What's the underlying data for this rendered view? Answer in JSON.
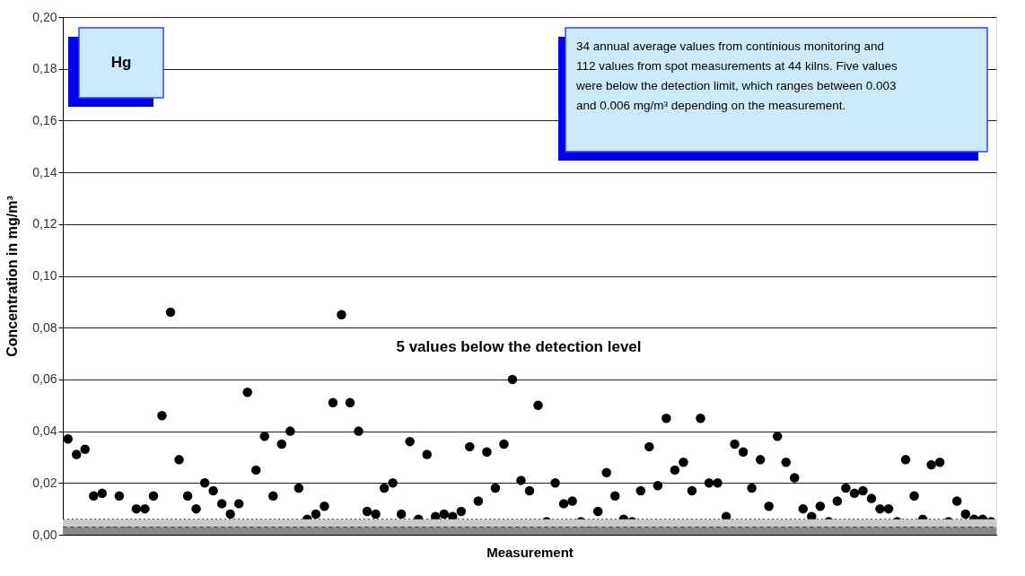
{
  "chart_data": {
    "type": "scatter",
    "ylabel": "Concentration in mg/m³",
    "xlabel": "Measurement",
    "annotations": [
      "Hg",
      "34 annual average values from continious monitoring and 112 values from spot measurements at 44 kilns. Five values were below the detection limit, which ranges between 0.003 and 0.006 mg/m³ depending on the measurement.",
      "5 values below the detection level"
    ],
    "categories": [
      null,
      null,
      null,
      null,
      null,
      null,
      null,
      null,
      null,
      null,
      null,
      null,
      null,
      null,
      null,
      null,
      null,
      null,
      null,
      null,
      null,
      null,
      null,
      null,
      null,
      null,
      null,
      null,
      null,
      null,
      null,
      null,
      null,
      null,
      null,
      null,
      null,
      null,
      null,
      null,
      null,
      null,
      null,
      null,
      null,
      null,
      null,
      null,
      null,
      null,
      null,
      null,
      null,
      null,
      null,
      null,
      null,
      null,
      null,
      null,
      null,
      null,
      null,
      null,
      null,
      null,
      null,
      null,
      null,
      null,
      null,
      null,
      null,
      null,
      null,
      null,
      null,
      null,
      null,
      null,
      null,
      null,
      null,
      null,
      null,
      null,
      null,
      null,
      null,
      null,
      null,
      null,
      null,
      null,
      null,
      null,
      null,
      null,
      null,
      null,
      null,
      null,
      null,
      null,
      null,
      null,
      null,
      null,
      null
    ],
    "series": [
      {
        "color": "#000000",
        "values": [
          0.037,
          0.031,
          0.033,
          0.015,
          0.016,
          0.004,
          0.015,
          0.004,
          0.01,
          0.01,
          0.015,
          0.046,
          0.086,
          0.029,
          0.015,
          0.01,
          0.02,
          0.017,
          0.012,
          0.008,
          0.012,
          0.055,
          0.025,
          0.038,
          0.015,
          0.035,
          0.04,
          0.018,
          0.006,
          0.008,
          0.011,
          0.051,
          0.085,
          0.051,
          0.04,
          0.009,
          0.008,
          0.018,
          0.02,
          0.008,
          0.036,
          0.006,
          0.031,
          0.007,
          0.008,
          0.007,
          0.009,
          0.034,
          0.013,
          0.032,
          0.018,
          0.035,
          0.06,
          0.021,
          0.017,
          0.05,
          0.005,
          0.02,
          0.012,
          0.013,
          0.005,
          0.003,
          0.009,
          0.024,
          0.015,
          0.006,
          0.005,
          0.017,
          0.034,
          0.019,
          0.045,
          0.025,
          0.028,
          0.017,
          0.045,
          0.02,
          0.02,
          0.007,
          0.035,
          0.032,
          0.018,
          0.029,
          0.011,
          0.038,
          0.028,
          0.022,
          0.01,
          0.007,
          0.011,
          0.005,
          0.013,
          0.018,
          0.016,
          0.017,
          0.014,
          0.01,
          0.01,
          0.005,
          0.029,
          0.015,
          0.006,
          0.027,
          0.028,
          0.005,
          0.013,
          0.008,
          0.006,
          0.006,
          0.005
        ]
      }
    ],
    "ylim": [
      0,
      0.2
    ],
    "yticks": [
      {
        "value": 0,
        "label": "0,00"
      },
      {
        "value": 0.02,
        "label": "0,02"
      },
      {
        "value": 0.04,
        "label": "0,04"
      },
      {
        "value": 0.06,
        "label": "0,06"
      },
      {
        "value": 0.08,
        "label": "0,08"
      },
      {
        "value": 0.1,
        "label": "0,10"
      },
      {
        "value": 0.12,
        "label": "0,12"
      },
      {
        "value": 0.14,
        "label": "0,14"
      },
      {
        "value": 0.16,
        "label": "0,16"
      },
      {
        "value": 0.18,
        "label": "0,18"
      },
      {
        "value": 0.2,
        "label": "0,20"
      }
    ],
    "bands": [
      {
        "axis": "y",
        "from": 0,
        "to": 0.003,
        "color": "#888888"
      },
      {
        "axis": "y",
        "from": 0.003,
        "to": 0.006,
        "color": "#cccccc"
      }
    ],
    "ref_lines": [
      {
        "axis": "y",
        "value": 0.003,
        "line_style": "dashed",
        "color": "#444444"
      },
      {
        "axis": "y",
        "value": 0.006,
        "line_style": "dotted",
        "color": "#444444"
      }
    ],
    "grid": "y",
    "marker": "circle",
    "tick_labels": "y"
  }
}
